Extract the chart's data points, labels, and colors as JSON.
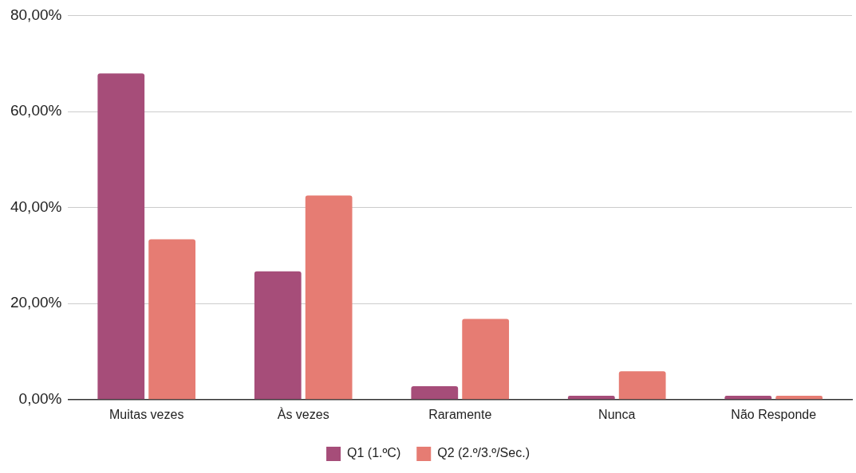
{
  "chart_data": {
    "type": "bar",
    "categories": [
      "Muitas vezes",
      "Às vezes",
      "Raramente",
      "Nunca",
      "Não Responde"
    ],
    "series": [
      {
        "name": "Q1 (1.ºC)",
        "color": "#a64d79",
        "values": [
          67.9,
          26.7,
          2.8,
          0.8,
          0.8
        ]
      },
      {
        "name": "Q2 (2.º/3.º/Sec.)",
        "color": "#e67c73",
        "values": [
          33.4,
          42.5,
          16.8,
          5.9,
          0.8
        ]
      }
    ],
    "ylim": [
      0,
      80
    ],
    "yticks": [
      {
        "value": 0,
        "label": "0,00%"
      },
      {
        "value": 20,
        "label": "20,00%"
      },
      {
        "value": 40,
        "label": "40,00%"
      },
      {
        "value": 60,
        "label": "60,00%"
      },
      {
        "value": 80,
        "label": "80,00%"
      }
    ],
    "grid": "y",
    "legend": "bottom"
  }
}
